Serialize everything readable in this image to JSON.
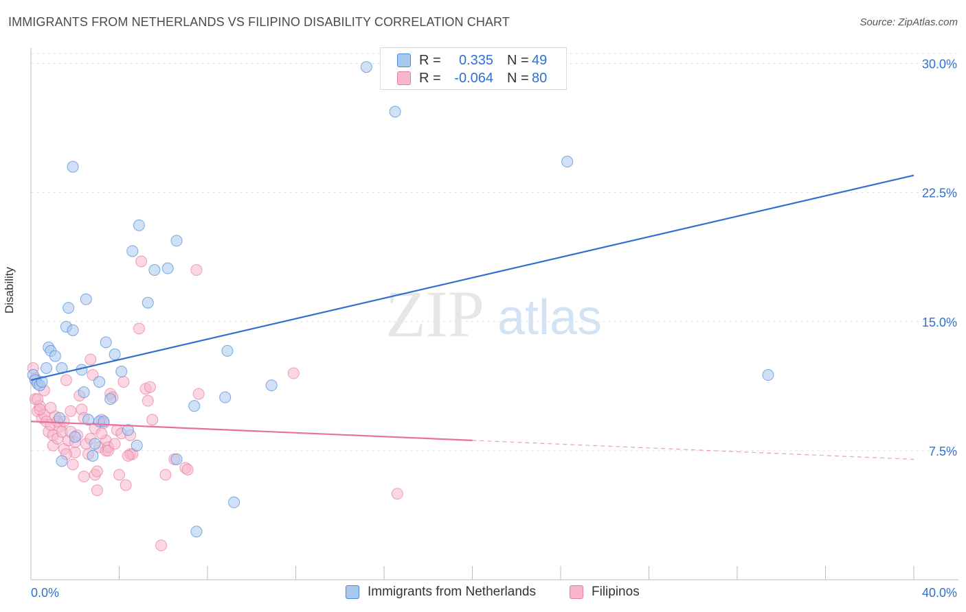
{
  "title": "IMMIGRANTS FROM NETHERLANDS VS FILIPINO DISABILITY CORRELATION CHART",
  "source": "Source: ZipAtlas.com",
  "watermark": {
    "zip": "ZIP",
    "atlas": "atlas"
  },
  "legend": {
    "series1": {
      "r_label": "R =",
      "r_value": "0.335",
      "n_label": "N =",
      "n_value": "49"
    },
    "series2": {
      "r_label": "R =",
      "r_value": "-0.064",
      "n_label": "N =",
      "n_value": "80"
    }
  },
  "bottom_legend": {
    "series1": "Immigrants from Netherlands",
    "series2": "Filipinos"
  },
  "colors": {
    "blue_fill": "#a9c8ee",
    "blue_stroke": "#4a86d8",
    "blue_line": "#2e6fcf",
    "pink_fill": "#f6b6cb",
    "pink_stroke": "#e77ba0",
    "pink_line": "#e8709a",
    "grid": "#e3e3e3",
    "axis_text": "#2e6fcf"
  },
  "chart_data": {
    "type": "scatter",
    "title": "IMMIGRANTS FROM NETHERLANDS VS FILIPINO DISABILITY CORRELATION CHART",
    "xlabel": "",
    "ylabel": "Disability",
    "xlim": [
      0,
      40
    ],
    "ylim": [
      0,
      30.9
    ],
    "x_tick_labels": [
      "0.0%",
      "40.0%"
    ],
    "y_ticks": [
      7.5,
      15.0,
      22.5,
      30.0
    ],
    "y_tick_labels": [
      "7.5%",
      "15.0%",
      "22.5%",
      "30.0%"
    ],
    "series": [
      {
        "name": "Immigrants from Netherlands",
        "r": 0.335,
        "n": 49,
        "trend": {
          "x": [
            0,
            40
          ],
          "y": [
            11.6,
            23.5
          ],
          "dashed_from": null
        },
        "points": [
          [
            0.1,
            11.9
          ],
          [
            0.2,
            11.6
          ],
          [
            0.3,
            11.4
          ],
          [
            0.4,
            11.3
          ],
          [
            0.5,
            11.5
          ],
          [
            0.7,
            12.3
          ],
          [
            0.8,
            13.5
          ],
          [
            0.9,
            13.3
          ],
          [
            1.1,
            13.0
          ],
          [
            1.3,
            9.4
          ],
          [
            1.4,
            12.3
          ],
          [
            1.6,
            14.7
          ],
          [
            1.7,
            15.8
          ],
          [
            1.9,
            14.5
          ],
          [
            2.0,
            8.3
          ],
          [
            1.9,
            24.0
          ],
          [
            2.3,
            12.2
          ],
          [
            2.4,
            10.9
          ],
          [
            2.5,
            16.3
          ],
          [
            2.6,
            9.3
          ],
          [
            2.8,
            7.2
          ],
          [
            2.9,
            7.9
          ],
          [
            3.1,
            9.2
          ],
          [
            3.1,
            11.5
          ],
          [
            3.3,
            9.2
          ],
          [
            3.4,
            13.8
          ],
          [
            3.6,
            10.5
          ],
          [
            3.8,
            13.1
          ],
          [
            4.1,
            12.1
          ],
          [
            4.4,
            8.7
          ],
          [
            4.6,
            19.1
          ],
          [
            4.8,
            7.8
          ],
          [
            4.9,
            20.6
          ],
          [
            5.3,
            16.1
          ],
          [
            5.6,
            18.0
          ],
          [
            6.2,
            18.1
          ],
          [
            6.6,
            19.7
          ],
          [
            6.6,
            7.0
          ],
          [
            7.4,
            10.1
          ],
          [
            7.5,
            2.8
          ],
          [
            8.8,
            10.6
          ],
          [
            8.9,
            13.3
          ],
          [
            9.2,
            4.5
          ],
          [
            10.9,
            11.3
          ],
          [
            15.2,
            29.8
          ],
          [
            16.5,
            27.2
          ],
          [
            24.3,
            24.3
          ],
          [
            33.4,
            11.9
          ],
          [
            1.4,
            6.9
          ]
        ]
      },
      {
        "name": "Filipinos",
        "r": -0.064,
        "n": 80,
        "trend": {
          "x": [
            0,
            40
          ],
          "y": [
            9.2,
            7.0
          ],
          "dashed_from": 20
        },
        "points": [
          [
            0.1,
            12.3
          ],
          [
            0.2,
            11.7
          ],
          [
            0.2,
            10.5
          ],
          [
            0.3,
            9.8
          ],
          [
            0.4,
            10.1
          ],
          [
            0.5,
            9.4
          ],
          [
            0.6,
            9.6
          ],
          [
            0.7,
            9.2
          ],
          [
            0.8,
            8.6
          ],
          [
            0.9,
            9.0
          ],
          [
            1.0,
            8.4
          ],
          [
            1.0,
            7.8
          ],
          [
            1.1,
            9.5
          ],
          [
            1.2,
            8.2
          ],
          [
            1.3,
            8.9
          ],
          [
            1.4,
            8.6
          ],
          [
            1.5,
            9.2
          ],
          [
            1.5,
            7.6
          ],
          [
            1.6,
            11.6
          ],
          [
            1.7,
            8.1
          ],
          [
            1.8,
            9.8
          ],
          [
            1.9,
            6.7
          ],
          [
            2.0,
            7.4
          ],
          [
            2.0,
            8.0
          ],
          [
            2.2,
            10.7
          ],
          [
            2.3,
            9.9
          ],
          [
            2.4,
            9.4
          ],
          [
            2.4,
            6.0
          ],
          [
            2.5,
            7.9
          ],
          [
            2.6,
            7.3
          ],
          [
            2.7,
            12.8
          ],
          [
            2.7,
            8.2
          ],
          [
            2.8,
            11.9
          ],
          [
            2.9,
            6.1
          ],
          [
            3.0,
            6.3
          ],
          [
            3.0,
            5.2
          ],
          [
            3.1,
            7.7
          ],
          [
            3.2,
            9.3
          ],
          [
            3.3,
            9.1
          ],
          [
            3.4,
            8.1
          ],
          [
            3.4,
            7.5
          ],
          [
            3.5,
            7.7
          ],
          [
            3.5,
            7.5
          ],
          [
            3.6,
            10.8
          ],
          [
            3.7,
            10.6
          ],
          [
            3.9,
            8.7
          ],
          [
            4.0,
            6.1
          ],
          [
            4.1,
            8.5
          ],
          [
            4.2,
            11.5
          ],
          [
            4.3,
            5.5
          ],
          [
            4.5,
            8.4
          ],
          [
            4.5,
            7.3
          ],
          [
            4.6,
            7.3
          ],
          [
            4.9,
            14.6
          ],
          [
            5.0,
            18.5
          ],
          [
            5.2,
            11.1
          ],
          [
            5.3,
            10.4
          ],
          [
            5.4,
            11.2
          ],
          [
            5.5,
            9.3
          ],
          [
            5.9,
            2.0
          ],
          [
            6.1,
            6.1
          ],
          [
            6.5,
            7.0
          ],
          [
            7.0,
            6.5
          ],
          [
            7.1,
            6.4
          ],
          [
            7.5,
            18.0
          ],
          [
            7.6,
            10.8
          ],
          [
            11.9,
            12.0
          ],
          [
            16.6,
            5.0
          ],
          [
            0.3,
            10.5
          ],
          [
            0.4,
            9.9
          ],
          [
            0.9,
            10.0
          ],
          [
            1.2,
            9.2
          ],
          [
            1.6,
            7.3
          ],
          [
            2.1,
            8.4
          ],
          [
            2.9,
            8.8
          ],
          [
            3.2,
            8.5
          ],
          [
            3.8,
            7.9
          ],
          [
            4.4,
            7.2
          ],
          [
            0.6,
            11.0
          ],
          [
            1.8,
            8.6
          ]
        ]
      }
    ]
  }
}
